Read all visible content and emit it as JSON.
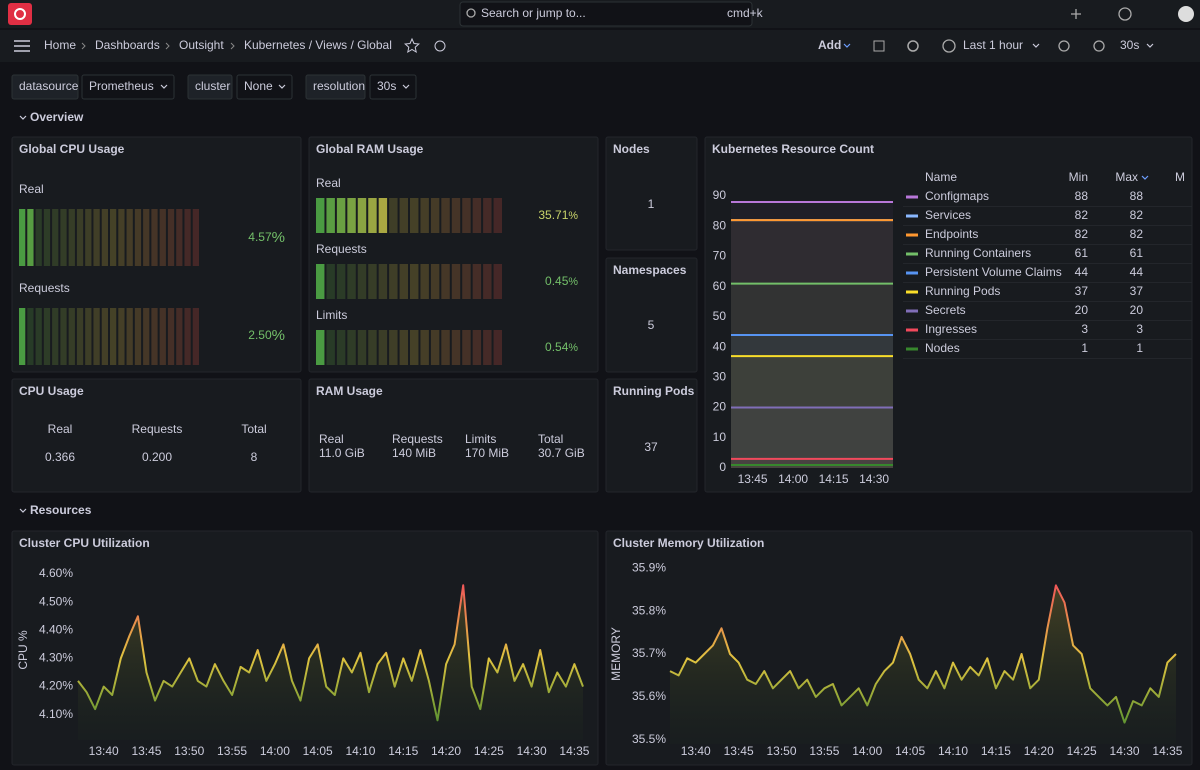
{
  "topbar": {
    "search": "Search or jump to...",
    "shortcut": "cmd+k"
  },
  "breadcrumbs": [
    "Home",
    "Dashboards",
    "Outsight",
    "Kubernetes / Views / Global"
  ],
  "toolbar": {
    "add": "Add",
    "time_range": "Last 1 hour",
    "refresh": "30s"
  },
  "variables": [
    {
      "label": "datasource",
      "value": "Prometheus"
    },
    {
      "label": "cluster",
      "value": "None"
    },
    {
      "label": "resolution",
      "value": "30s"
    }
  ],
  "rows": [
    "Overview",
    "Resources"
  ],
  "global_cpu": {
    "title": "Global CPU Usage",
    "gauges": [
      {
        "label": "Real",
        "value": "4.57",
        "unit": "%",
        "color": "#73bf69"
      },
      {
        "label": "Requests",
        "value": "2.50",
        "unit": "%",
        "color": "#73bf69"
      }
    ]
  },
  "global_ram": {
    "title": "Global RAM Usage",
    "gauges": [
      {
        "label": "Real",
        "value": "35.71",
        "unit": "%",
        "color": "#c9d46a"
      },
      {
        "label": "Requests",
        "value": "0.45",
        "unit": "%",
        "color": "#73bf69"
      },
      {
        "label": "Limits",
        "value": "0.54",
        "unit": "%",
        "color": "#73bf69"
      }
    ]
  },
  "stats": [
    {
      "title": "Nodes",
      "value": "1"
    },
    {
      "title": "Namespaces",
      "value": "5"
    },
    {
      "title": "Running Pods",
      "value": "37"
    }
  ],
  "cpu_usage": {
    "title": "CPU Usage",
    "items": [
      {
        "label": "Real",
        "value": "0.366"
      },
      {
        "label": "Requests",
        "value": "0.200"
      },
      {
        "label": "Total",
        "value": "8"
      }
    ]
  },
  "ram_usage": {
    "title": "RAM Usage",
    "items": [
      {
        "label": "Real",
        "value": "11.0 GiB"
      },
      {
        "label": "Requests",
        "value": "140 MiB"
      },
      {
        "label": "Limits",
        "value": "170 MiB"
      },
      {
        "label": "Total",
        "value": "30.7 GiB"
      }
    ]
  },
  "chart_data": [
    {
      "type": "line",
      "title": "Kubernetes Resource Count",
      "ylim": [
        0,
        90
      ],
      "yticks": [
        0,
        10,
        20,
        30,
        40,
        50,
        60,
        70,
        80,
        90
      ],
      "grid": false,
      "xlim": [
        "13:37",
        "14:37"
      ],
      "xticks": [
        "13:45",
        "14:00",
        "14:15",
        "14:30"
      ],
      "legend_columns": [
        "Name",
        "Min",
        "Max",
        "M"
      ],
      "series": [
        {
          "name": "Configmaps",
          "color": "#b877d9",
          "min": 88,
          "max": 88
        },
        {
          "name": "Services",
          "color": "#8ab8ff",
          "min": 82,
          "max": 82
        },
        {
          "name": "Endpoints",
          "color": "#ff9830",
          "min": 82,
          "max": 82
        },
        {
          "name": "Running Containers",
          "color": "#73bf69",
          "min": 61,
          "max": 61
        },
        {
          "name": "Persistent Volume Claims",
          "color": "#5794f2",
          "min": 44,
          "max": 44
        },
        {
          "name": "Running Pods",
          "color": "#fade2a",
          "min": 37,
          "max": 37
        },
        {
          "name": "Secrets",
          "color": "#806eb7",
          "min": 20,
          "max": 20
        },
        {
          "name": "Ingresses",
          "color": "#f2495c",
          "min": 3,
          "max": 3
        },
        {
          "name": "Nodes",
          "color": "#37872d",
          "min": 1,
          "max": 1
        }
      ]
    },
    {
      "type": "line",
      "title": "Cluster CPU Utilization",
      "ylabel": "CPU %",
      "ylim": [
        4.01,
        4.65
      ],
      "grid": false,
      "yticks": [
        {
          "value": 4.1,
          "label": "4.10%"
        },
        {
          "value": 4.2,
          "label": "4.20%"
        },
        {
          "value": 4.3,
          "label": "4.30%"
        },
        {
          "value": 4.4,
          "label": "4.40%"
        },
        {
          "value": 4.5,
          "label": "4.50%"
        },
        {
          "value": 4.6,
          "label": "4.60%"
        }
      ],
      "xlim": [
        "13:37",
        "14:36"
      ],
      "xticks": [
        "13:40",
        "13:45",
        "13:50",
        "13:55",
        "14:00",
        "14:05",
        "14:10",
        "14:15",
        "14:20",
        "14:25",
        "14:30",
        "14:35"
      ],
      "x": [
        "13:37",
        "13:38",
        "13:39",
        "13:40",
        "13:41",
        "13:42",
        "13:43",
        "13:44",
        "13:45",
        "13:46",
        "13:47",
        "13:48",
        "13:49",
        "13:50",
        "13:51",
        "13:52",
        "13:53",
        "13:54",
        "13:55",
        "13:56",
        "13:57",
        "13:58",
        "13:59",
        "14:00",
        "14:01",
        "14:02",
        "14:03",
        "14:04",
        "14:05",
        "14:06",
        "14:07",
        "14:08",
        "14:09",
        "14:10",
        "14:11",
        "14:12",
        "14:13",
        "14:14",
        "14:15",
        "14:16",
        "14:17",
        "14:18",
        "14:19",
        "14:20",
        "14:21",
        "14:22",
        "14:23",
        "14:24",
        "14:25",
        "14:26",
        "14:27",
        "14:28",
        "14:29",
        "14:30",
        "14:31",
        "14:32",
        "14:33",
        "14:34",
        "14:35",
        "14:36"
      ],
      "series": [
        {
          "name": "CPU",
          "values": [
            4.22,
            4.18,
            4.12,
            4.2,
            4.17,
            4.3,
            4.38,
            4.45,
            4.25,
            4.15,
            4.22,
            4.2,
            4.25,
            4.3,
            4.22,
            4.2,
            4.28,
            4.22,
            4.17,
            4.27,
            4.25,
            4.33,
            4.22,
            4.28,
            4.35,
            4.22,
            4.15,
            4.3,
            4.35,
            4.2,
            4.17,
            4.3,
            4.25,
            4.32,
            4.18,
            4.28,
            4.32,
            4.2,
            4.3,
            4.22,
            4.33,
            4.22,
            4.08,
            4.28,
            4.35,
            4.56,
            4.2,
            4.12,
            4.3,
            4.25,
            4.35,
            4.22,
            4.28,
            4.2,
            4.33,
            4.18,
            4.25,
            4.2,
            4.28,
            4.2
          ]
        }
      ]
    },
    {
      "type": "line",
      "title": "Cluster Memory Utilization",
      "ylabel": "MEMORY",
      "ylim": [
        35.49,
        35.91
      ],
      "grid": false,
      "yticks": [
        {
          "value": 35.5,
          "label": "35.5%"
        },
        {
          "value": 35.6,
          "label": "35.6%"
        },
        {
          "value": 35.7,
          "label": "35.7%"
        },
        {
          "value": 35.8,
          "label": "35.8%"
        },
        {
          "value": 35.9,
          "label": "35.9%"
        }
      ],
      "xlim": [
        "13:37",
        "14:36"
      ],
      "xticks": [
        "13:40",
        "13:45",
        "13:50",
        "13:55",
        "14:00",
        "14:05",
        "14:10",
        "14:15",
        "14:20",
        "14:25",
        "14:30",
        "14:35"
      ],
      "x": [
        "13:37",
        "13:38",
        "13:39",
        "13:40",
        "13:41",
        "13:42",
        "13:43",
        "13:44",
        "13:45",
        "13:46",
        "13:47",
        "13:48",
        "13:49",
        "13:50",
        "13:51",
        "13:52",
        "13:53",
        "13:54",
        "13:55",
        "13:56",
        "13:57",
        "13:58",
        "13:59",
        "14:00",
        "14:01",
        "14:02",
        "14:03",
        "14:04",
        "14:05",
        "14:06",
        "14:07",
        "14:08",
        "14:09",
        "14:10",
        "14:11",
        "14:12",
        "14:13",
        "14:14",
        "14:15",
        "14:16",
        "14:17",
        "14:18",
        "14:19",
        "14:20",
        "14:21",
        "14:22",
        "14:23",
        "14:24",
        "14:25",
        "14:26",
        "14:27",
        "14:28",
        "14:29",
        "14:30",
        "14:31",
        "14:32",
        "14:33",
        "14:34",
        "14:35",
        "14:36"
      ],
      "series": [
        {
          "name": "Memory",
          "values": [
            35.66,
            35.65,
            35.69,
            35.68,
            35.7,
            35.72,
            35.76,
            35.7,
            35.68,
            35.64,
            35.63,
            35.66,
            35.62,
            35.64,
            35.66,
            35.62,
            35.64,
            35.6,
            35.62,
            35.63,
            35.58,
            35.6,
            35.62,
            35.58,
            35.63,
            35.66,
            35.68,
            35.74,
            35.7,
            35.64,
            35.62,
            35.66,
            35.62,
            35.68,
            35.64,
            35.67,
            35.65,
            35.69,
            35.62,
            35.66,
            35.64,
            35.7,
            35.62,
            35.64,
            35.76,
            35.86,
            35.82,
            35.72,
            35.7,
            35.62,
            35.6,
            35.58,
            35.6,
            35.54,
            35.59,
            35.58,
            35.62,
            35.6,
            35.68,
            35.7
          ]
        }
      ]
    }
  ]
}
